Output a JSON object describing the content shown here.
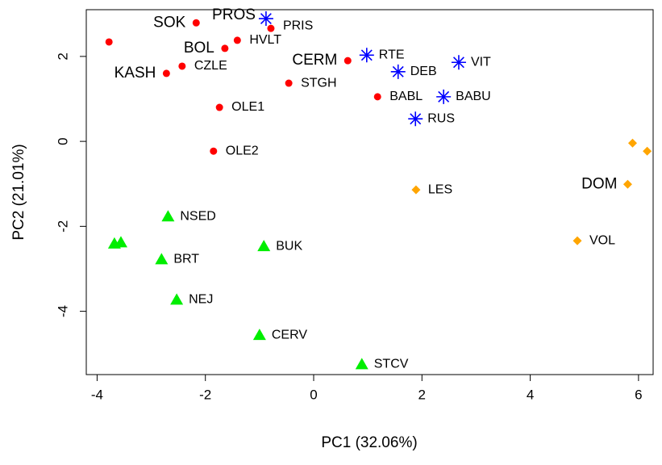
{
  "chart_data": {
    "type": "scatter",
    "x_label": "PC1 (32.06%)",
    "y_label": "PC2 (21.01%)",
    "xlim": [
      -4.2,
      6.27
    ],
    "ylim": [
      -5.49,
      3.1
    ],
    "xticks": [
      -4,
      -2,
      0,
      2,
      4,
      6
    ],
    "yticks": [
      -4,
      -2,
      0,
      2
    ],
    "series": [
      {
        "color": "#ff0000",
        "marker": "circle",
        "x": [
          -3.78,
          -2.17,
          -0.79,
          -1.41,
          -1.64,
          -2.43,
          -2.72,
          0.63,
          -0.46,
          -1.74,
          -1.85,
          1.18
        ],
        "values": [
          2.34,
          2.79,
          2.66,
          2.38,
          2.19,
          1.77,
          1.6,
          1.9,
          1.37,
          0.8,
          -0.23,
          1.05
        ],
        "labels": [
          null,
          "SOK",
          "PRIS",
          "HVLT",
          "BOL",
          "CZLE",
          "KASH",
          "CERM",
          "STGH",
          "OLE1",
          "OLE2",
          "BABL"
        ]
      },
      {
        "color": "#0000ff",
        "marker": "asterisk",
        "x": [
          -0.88,
          0.98,
          1.56,
          2.68,
          2.4,
          1.88
        ],
        "values": [
          2.89,
          2.03,
          1.64,
          1.86,
          1.05,
          0.53
        ],
        "labels": [
          "PROS",
          "RTE",
          "DEB",
          "VIT",
          "BABU",
          "RUS"
        ]
      },
      {
        "color": "#ffa500",
        "marker": "diamond",
        "x": [
          5.89,
          6.16,
          5.8,
          1.89,
          4.87
        ],
        "values": [
          -0.04,
          -0.23,
          -1.01,
          -1.14,
          -2.34
        ],
        "labels": [
          null,
          null,
          "DOM",
          "LES",
          "VOL"
        ]
      },
      {
        "color": "#00ee00",
        "marker": "triangle",
        "x": [
          -2.69,
          -3.68,
          -3.56,
          -2.81,
          -0.92,
          -2.53,
          -1.0,
          0.89
        ],
        "values": [
          -1.77,
          -2.41,
          -2.38,
          -2.78,
          -2.47,
          -3.73,
          -4.56,
          -5.25
        ],
        "labels": [
          "NSED",
          null,
          null,
          "BRT",
          "BUK",
          "NEJ",
          "CERV",
          "STCV"
        ]
      }
    ]
  }
}
